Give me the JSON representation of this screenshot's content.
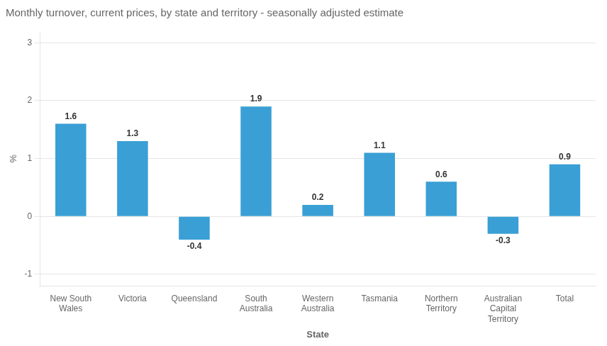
{
  "chart_data": {
    "type": "bar",
    "title": "Monthly turnover, current prices, by state and territory - seasonally adjusted estimate",
    "categories": [
      "New South\nWales",
      "Victoria",
      "Queensland",
      "South\nAustralia",
      "Western\nAustralia",
      "Tasmania",
      "Northern\nTerritory",
      "Australian\nCapital\nTerritory",
      "Total"
    ],
    "values": [
      1.6,
      1.3,
      -0.4,
      1.9,
      0.2,
      1.1,
      0.6,
      -0.3,
      0.9
    ],
    "color": "#3a9fd5",
    "xlabel": "State",
    "ylabel": "%",
    "ylim": [
      -1.2,
      3.2
    ],
    "yticks": [
      -1,
      0,
      1,
      2,
      3
    ],
    "grid": true,
    "data_labels": true
  }
}
